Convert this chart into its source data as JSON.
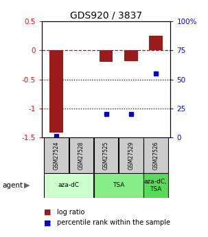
{
  "title": "GDS920 / 3837",
  "samples": [
    "GSM27524",
    "GSM27528",
    "GSM27525",
    "GSM27529",
    "GSM27526"
  ],
  "log_ratios": [
    -1.42,
    0.0,
    -0.2,
    -0.18,
    0.25
  ],
  "percentile_ranks": [
    1.5,
    null,
    20.0,
    20.0,
    55.0
  ],
  "ylim_left": [
    -1.5,
    0.5
  ],
  "ylim_right": [
    0,
    100
  ],
  "bar_color": "#9B1A1A",
  "dot_color": "#0000CC",
  "dashed_line_color": "#CC0000",
  "dotted_line_color": "#000000",
  "agent_groups": [
    {
      "label": "aza-dC",
      "indices": [
        0,
        1
      ],
      "color": "#CCFFCC"
    },
    {
      "label": "TSA",
      "indices": [
        2,
        3
      ],
      "color": "#88EE88"
    },
    {
      "label": "aza-dC,\nTSA",
      "indices": [
        4
      ],
      "color": "#55DD55"
    }
  ],
  "legend_items": [
    {
      "color": "#9B1A1A",
      "label": "log ratio"
    },
    {
      "color": "#0000CC",
      "label": "percentile rank within the sample"
    }
  ],
  "left_ticks": [
    0.5,
    0.0,
    -0.5,
    -1.0,
    -1.5
  ],
  "left_tick_labels": [
    "0.5",
    "0",
    "-0.5",
    "-1",
    "-1.5"
  ],
  "right_ticks": [
    100,
    75,
    50,
    25,
    0
  ],
  "right_tick_labels": [
    "100%",
    "75",
    "50",
    "25",
    "0"
  ]
}
